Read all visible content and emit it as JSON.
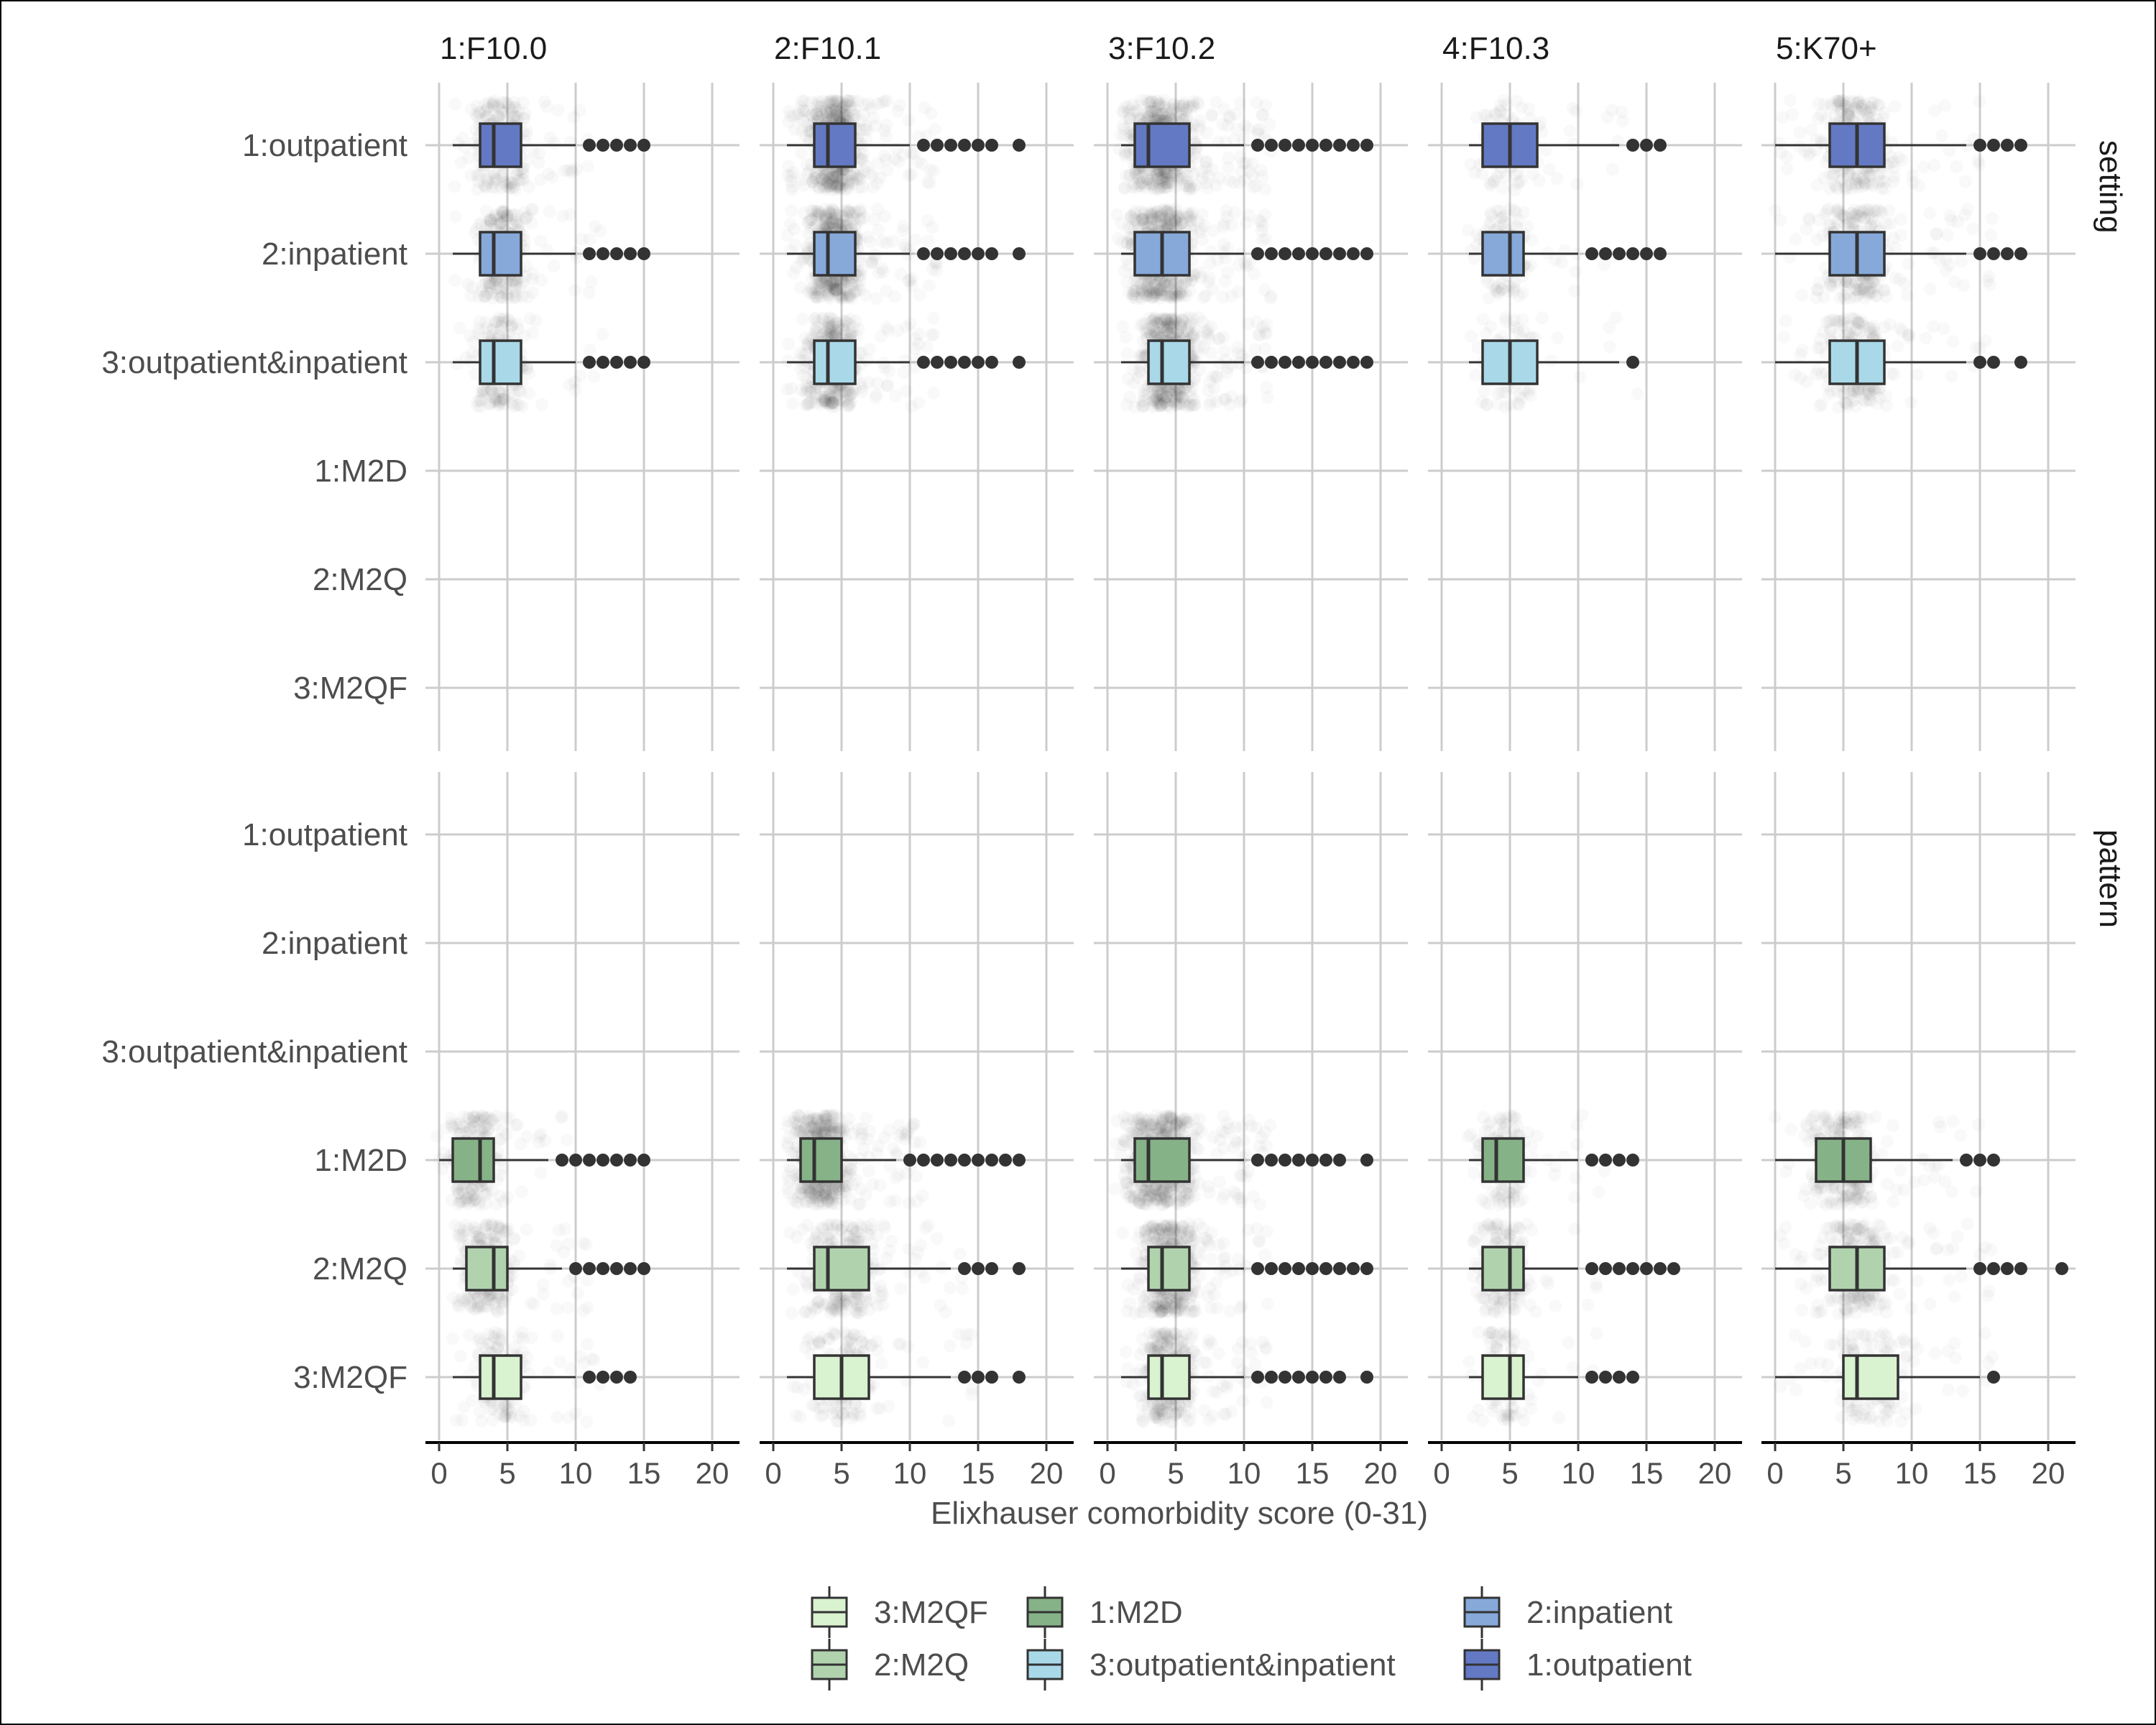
{
  "chart_data": {
    "type": "boxplot",
    "xlabel": "Elixhauser comorbidity score (0-31)",
    "xlim": [
      -1,
      22
    ],
    "xticks": [
      0,
      5,
      10,
      15,
      20
    ],
    "columns": [
      "1:F10.0",
      "2:F10.1",
      "3:F10.2",
      "4:F10.3",
      "5:K70+"
    ],
    "rows": [
      {
        "name": "setting",
        "categories": [
          "1:outpatient",
          "2:inpatient",
          "3:outpatient&inpatient",
          "1:M2D",
          "2:M2Q",
          "3:M2QF"
        ]
      },
      {
        "name": "pattern",
        "categories": [
          "1:outpatient",
          "2:inpatient",
          "3:outpatient&inpatient",
          "1:M2D",
          "2:M2Q",
          "3:M2QF"
        ]
      }
    ],
    "colors": {
      "1:outpatient": "#6379c4",
      "2:inpatient": "#86a9da",
      "3:outpatient&inpatient": "#a9d9e8",
      "1:M2D": "#86b287",
      "2:M2Q": "#b0d3ad",
      "3:M2QF": "#d9f2d0"
    },
    "legend": {
      "position": "bottom",
      "items": [
        "3:M2QF",
        "1:M2D",
        "2:inpatient",
        "2:M2Q",
        "3:outpatient&inpatient",
        "1:outpatient"
      ]
    },
    "boxes": [
      {
        "row": 0,
        "col": 0,
        "cat": 0,
        "whisker_low": 1,
        "q1": 3,
        "median": 4,
        "q3": 6,
        "whisker_high": 10,
        "outliers": [
          11,
          12,
          13,
          14,
          15
        ],
        "jitter": 0.45
      },
      {
        "row": 0,
        "col": 0,
        "cat": 1,
        "whisker_low": 1,
        "q1": 3,
        "median": 4,
        "q3": 6,
        "whisker_high": 10,
        "outliers": [
          11,
          12,
          13,
          14,
          15
        ],
        "jitter": 0.45
      },
      {
        "row": 0,
        "col": 0,
        "cat": 2,
        "whisker_low": 1,
        "q1": 3,
        "median": 4,
        "q3": 6,
        "whisker_high": 10,
        "outliers": [
          11,
          12,
          13,
          14,
          15
        ],
        "jitter": 0.35
      },
      {
        "row": 0,
        "col": 1,
        "cat": 0,
        "whisker_low": 1,
        "q1": 3,
        "median": 4,
        "q3": 6,
        "whisker_high": 10,
        "outliers": [
          11,
          12,
          13,
          14,
          15,
          16,
          18
        ],
        "jitter": 1.0
      },
      {
        "row": 0,
        "col": 1,
        "cat": 1,
        "whisker_low": 1,
        "q1": 3,
        "median": 4,
        "q3": 6,
        "whisker_high": 10,
        "outliers": [
          11,
          12,
          13,
          14,
          15,
          16,
          18
        ],
        "jitter": 1.0
      },
      {
        "row": 0,
        "col": 1,
        "cat": 2,
        "whisker_low": 1,
        "q1": 3,
        "median": 4,
        "q3": 6,
        "whisker_high": 10,
        "outliers": [
          11,
          12,
          13,
          14,
          15,
          16,
          18
        ],
        "jitter": 0.75
      },
      {
        "row": 0,
        "col": 2,
        "cat": 0,
        "whisker_low": 1,
        "q1": 2,
        "median": 3,
        "q3": 6,
        "whisker_high": 10,
        "outliers": [
          11,
          12,
          13,
          14,
          15,
          16,
          17,
          18,
          19
        ],
        "jitter": 1.0
      },
      {
        "row": 0,
        "col": 2,
        "cat": 1,
        "whisker_low": 1,
        "q1": 2,
        "median": 4,
        "q3": 6,
        "whisker_high": 10,
        "outliers": [
          11,
          12,
          13,
          14,
          15,
          16,
          17,
          18,
          19
        ],
        "jitter": 1.0
      },
      {
        "row": 0,
        "col": 2,
        "cat": 2,
        "whisker_low": 1,
        "q1": 3,
        "median": 4,
        "q3": 6,
        "whisker_high": 10,
        "outliers": [
          11,
          12,
          13,
          14,
          15,
          16,
          17,
          18,
          19
        ],
        "jitter": 1.0
      },
      {
        "row": 0,
        "col": 3,
        "cat": 0,
        "whisker_low": 2,
        "q1": 3,
        "median": 5,
        "q3": 7,
        "whisker_high": 13,
        "outliers": [
          14,
          15,
          16
        ],
        "jitter": 0.2
      },
      {
        "row": 0,
        "col": 3,
        "cat": 1,
        "whisker_low": 2,
        "q1": 3,
        "median": 5,
        "q3": 6,
        "whisker_high": 10,
        "outliers": [
          11,
          12,
          13,
          14,
          15,
          16
        ],
        "jitter": 0.2
      },
      {
        "row": 0,
        "col": 3,
        "cat": 2,
        "whisker_low": 2,
        "q1": 3,
        "median": 5,
        "q3": 7,
        "whisker_high": 13,
        "outliers": [
          14
        ],
        "jitter": 0.15
      },
      {
        "row": 0,
        "col": 4,
        "cat": 0,
        "whisker_low": 0,
        "q1": 4,
        "median": 6,
        "q3": 8,
        "whisker_high": 14,
        "outliers": [
          15,
          16,
          17,
          18
        ],
        "jitter": 0.55
      },
      {
        "row": 0,
        "col": 4,
        "cat": 1,
        "whisker_low": 0,
        "q1": 4,
        "median": 6,
        "q3": 8,
        "whisker_high": 14,
        "outliers": [
          15,
          16,
          17,
          18
        ],
        "jitter": 0.55
      },
      {
        "row": 0,
        "col": 4,
        "cat": 2,
        "whisker_low": 0,
        "q1": 4,
        "median": 6,
        "q3": 8,
        "whisker_high": 14,
        "outliers": [
          15,
          16,
          18
        ],
        "jitter": 0.45
      },
      {
        "row": 1,
        "col": 0,
        "cat": 3,
        "whisker_low": 0,
        "q1": 1,
        "median": 3,
        "q3": 4,
        "whisker_high": 8,
        "outliers": [
          9,
          10,
          11,
          12,
          13,
          14,
          15
        ],
        "jitter": 0.45
      },
      {
        "row": 1,
        "col": 0,
        "cat": 4,
        "whisker_low": 1,
        "q1": 2,
        "median": 4,
        "q3": 5,
        "whisker_high": 9,
        "outliers": [
          10,
          11,
          12,
          13,
          14,
          15
        ],
        "jitter": 0.45
      },
      {
        "row": 1,
        "col": 0,
        "cat": 5,
        "whisker_low": 1,
        "q1": 3,
        "median": 4,
        "q3": 6,
        "whisker_high": 10,
        "outliers": [
          11,
          12,
          13,
          14
        ],
        "jitter": 0.3
      },
      {
        "row": 1,
        "col": 1,
        "cat": 3,
        "whisker_low": 1,
        "q1": 2,
        "median": 3,
        "q3": 5,
        "whisker_high": 9,
        "outliers": [
          10,
          11,
          12,
          13,
          14,
          15,
          16,
          17,
          18
        ],
        "jitter": 1.0
      },
      {
        "row": 1,
        "col": 1,
        "cat": 4,
        "whisker_low": 1,
        "q1": 3,
        "median": 4,
        "q3": 7,
        "whisker_high": 13,
        "outliers": [
          14,
          15,
          16,
          18
        ],
        "jitter": 0.55
      },
      {
        "row": 1,
        "col": 1,
        "cat": 5,
        "whisker_low": 1,
        "q1": 3,
        "median": 5,
        "q3": 7,
        "whisker_high": 13,
        "outliers": [
          14,
          15,
          16,
          18
        ],
        "jitter": 0.3
      },
      {
        "row": 1,
        "col": 2,
        "cat": 3,
        "whisker_low": 1,
        "q1": 2,
        "median": 3,
        "q3": 6,
        "whisker_high": 10,
        "outliers": [
          11,
          12,
          13,
          14,
          15,
          16,
          17,
          19
        ],
        "jitter": 1.0
      },
      {
        "row": 1,
        "col": 2,
        "cat": 4,
        "whisker_low": 1,
        "q1": 3,
        "median": 4,
        "q3": 6,
        "whisker_high": 10,
        "outliers": [
          11,
          12,
          13,
          14,
          15,
          16,
          17,
          18,
          19
        ],
        "jitter": 0.85
      },
      {
        "row": 1,
        "col": 2,
        "cat": 5,
        "whisker_low": 1,
        "q1": 3,
        "median": 4,
        "q3": 6,
        "whisker_high": 10,
        "outliers": [
          11,
          12,
          13,
          14,
          15,
          16,
          17,
          19
        ],
        "jitter": 0.6
      },
      {
        "row": 1,
        "col": 3,
        "cat": 3,
        "whisker_low": 2,
        "q1": 3,
        "median": 4,
        "q3": 6,
        "whisker_high": 10,
        "outliers": [
          11,
          12,
          13,
          14
        ],
        "jitter": 0.25
      },
      {
        "row": 1,
        "col": 3,
        "cat": 4,
        "whisker_low": 2,
        "q1": 3,
        "median": 5,
        "q3": 6,
        "whisker_high": 10,
        "outliers": [
          11,
          12,
          13,
          14,
          15,
          16,
          17
        ],
        "jitter": 0.3
      },
      {
        "row": 1,
        "col": 3,
        "cat": 5,
        "whisker_low": 2,
        "q1": 3,
        "median": 5,
        "q3": 6,
        "whisker_high": 10,
        "outliers": [
          11,
          12,
          13,
          14
        ],
        "jitter": 0.2
      },
      {
        "row": 1,
        "col": 4,
        "cat": 3,
        "whisker_low": 0,
        "q1": 3,
        "median": 5,
        "q3": 7,
        "whisker_high": 13,
        "outliers": [
          14,
          15,
          16
        ],
        "jitter": 0.5
      },
      {
        "row": 1,
        "col": 4,
        "cat": 4,
        "whisker_low": 0,
        "q1": 4,
        "median": 6,
        "q3": 8,
        "whisker_high": 14,
        "outliers": [
          15,
          16,
          17,
          18,
          21
        ],
        "jitter": 0.5
      },
      {
        "row": 1,
        "col": 4,
        "cat": 5,
        "whisker_low": 0,
        "q1": 5,
        "median": 6,
        "q3": 9,
        "whisker_high": 15,
        "outliers": [
          16
        ],
        "jitter": 0.3
      }
    ]
  }
}
